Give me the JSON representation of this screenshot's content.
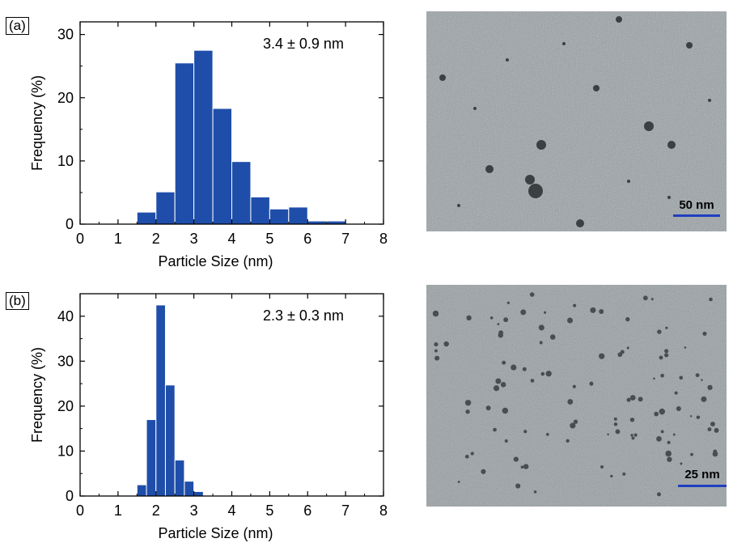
{
  "chart_data": [
    {
      "type": "bar",
      "panel": "(a)",
      "annotation": "3.4 ± 0.9 nm",
      "xlabel": "Particle Size (nm)",
      "ylabel": "Frequency (%)",
      "xlim": [
        0,
        8
      ],
      "ylim": [
        0,
        32
      ],
      "xticks": [
        0,
        1,
        2,
        3,
        4,
        5,
        6,
        7,
        8
      ],
      "yticks": [
        0,
        10,
        20,
        30
      ],
      "bin_width": 0.5,
      "x": [
        1.75,
        2.25,
        2.75,
        3.25,
        3.75,
        4.25,
        4.75,
        5.25,
        5.75,
        6.25,
        6.75
      ],
      "values": [
        1.9,
        5.1,
        25.5,
        27.5,
        18.3,
        9.9,
        4.3,
        2.4,
        2.7,
        0.5,
        0.5
      ],
      "bar_color": "#1f4eaa"
    },
    {
      "type": "bar",
      "panel": "(b)",
      "annotation": "2.3 ± 0.3 nm",
      "xlabel": "Particle Size (nm)",
      "ylabel": "Frequency (%)",
      "xlim": [
        0,
        8
      ],
      "ylim": [
        0,
        45
      ],
      "xticks": [
        0,
        1,
        2,
        3,
        4,
        5,
        6,
        7,
        8
      ],
      "yticks": [
        0,
        10,
        20,
        30,
        40
      ],
      "bin_width": 0.25,
      "x": [
        1.625,
        1.875,
        2.125,
        2.375,
        2.625,
        2.875,
        3.125,
        3.375
      ],
      "values": [
        2.5,
        17.0,
        42.5,
        24.7,
        8.0,
        3.3,
        1.0,
        0.1
      ],
      "bar_color": "#1f4eaa"
    }
  ],
  "micrographs": [
    {
      "scale_label": "50 nm",
      "scale_color": "#1f3fc0"
    },
    {
      "scale_label": "25 nm",
      "scale_color": "#1f3fc0"
    }
  ]
}
